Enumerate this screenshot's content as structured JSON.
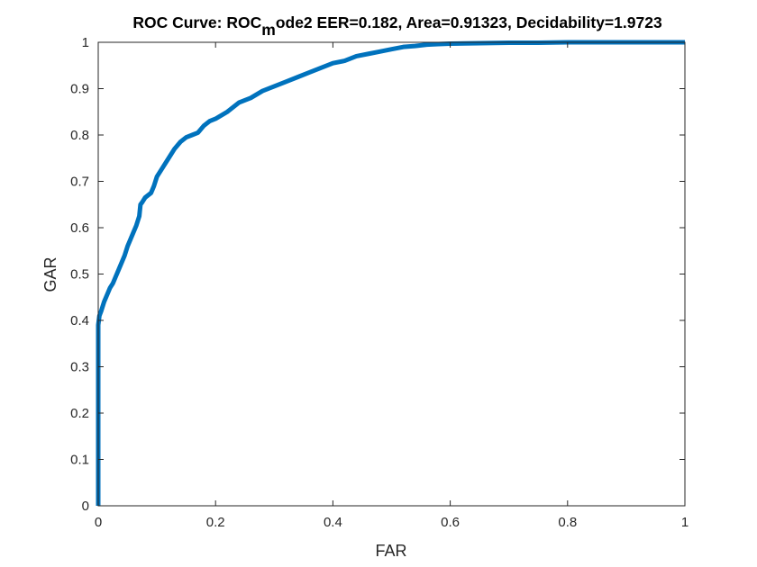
{
  "chart_data": {
    "type": "line",
    "title": {
      "main": "ROC Curve: ROC",
      "subscript": "m",
      "rest": "ode2   EER=0.182,   Area=0.91323,   Decidability=1.9723"
    },
    "xlabel": "FAR",
    "ylabel": "GAR",
    "xlim": [
      0,
      1
    ],
    "ylim": [
      0,
      1
    ],
    "xticks": [
      "0",
      "0.2",
      "0.4",
      "0.6",
      "0.8",
      "1"
    ],
    "yticks": [
      "0",
      "0.1",
      "0.2",
      "0.3",
      "0.4",
      "0.5",
      "0.6",
      "0.7",
      "0.8",
      "0.9",
      "1"
    ],
    "grid": false,
    "line_color": "#0072BD",
    "series": [
      {
        "x": [
          0,
          0,
          0.002,
          0.005,
          0.01,
          0.015,
          0.02,
          0.025,
          0.03,
          0.035,
          0.04,
          0.045,
          0.05,
          0.055,
          0.06,
          0.065,
          0.07,
          0.072,
          0.075,
          0.08,
          0.09,
          0.095,
          0.1,
          0.105,
          0.11,
          0.12,
          0.13,
          0.14,
          0.15,
          0.16,
          0.17,
          0.18,
          0.19,
          0.2,
          0.22,
          0.24,
          0.26,
          0.28,
          0.3,
          0.32,
          0.34,
          0.36,
          0.38,
          0.4,
          0.42,
          0.44,
          0.46,
          0.48,
          0.5,
          0.52,
          0.54,
          0.56,
          0.58,
          0.6,
          0.65,
          0.7,
          0.75,
          0.8,
          0.85,
          0.9,
          0.95,
          1.0
        ],
        "y": [
          0,
          0.39,
          0.41,
          0.42,
          0.44,
          0.455,
          0.47,
          0.48,
          0.495,
          0.51,
          0.525,
          0.54,
          0.56,
          0.575,
          0.59,
          0.605,
          0.625,
          0.65,
          0.655,
          0.665,
          0.675,
          0.69,
          0.71,
          0.72,
          0.73,
          0.75,
          0.77,
          0.785,
          0.795,
          0.8,
          0.805,
          0.82,
          0.83,
          0.835,
          0.85,
          0.87,
          0.88,
          0.895,
          0.905,
          0.915,
          0.925,
          0.935,
          0.945,
          0.955,
          0.96,
          0.97,
          0.975,
          0.98,
          0.985,
          0.99,
          0.992,
          0.995,
          0.996,
          0.997,
          0.998,
          0.999,
          0.999,
          1.0,
          1.0,
          1.0,
          1.0,
          1.0
        ]
      }
    ]
  }
}
